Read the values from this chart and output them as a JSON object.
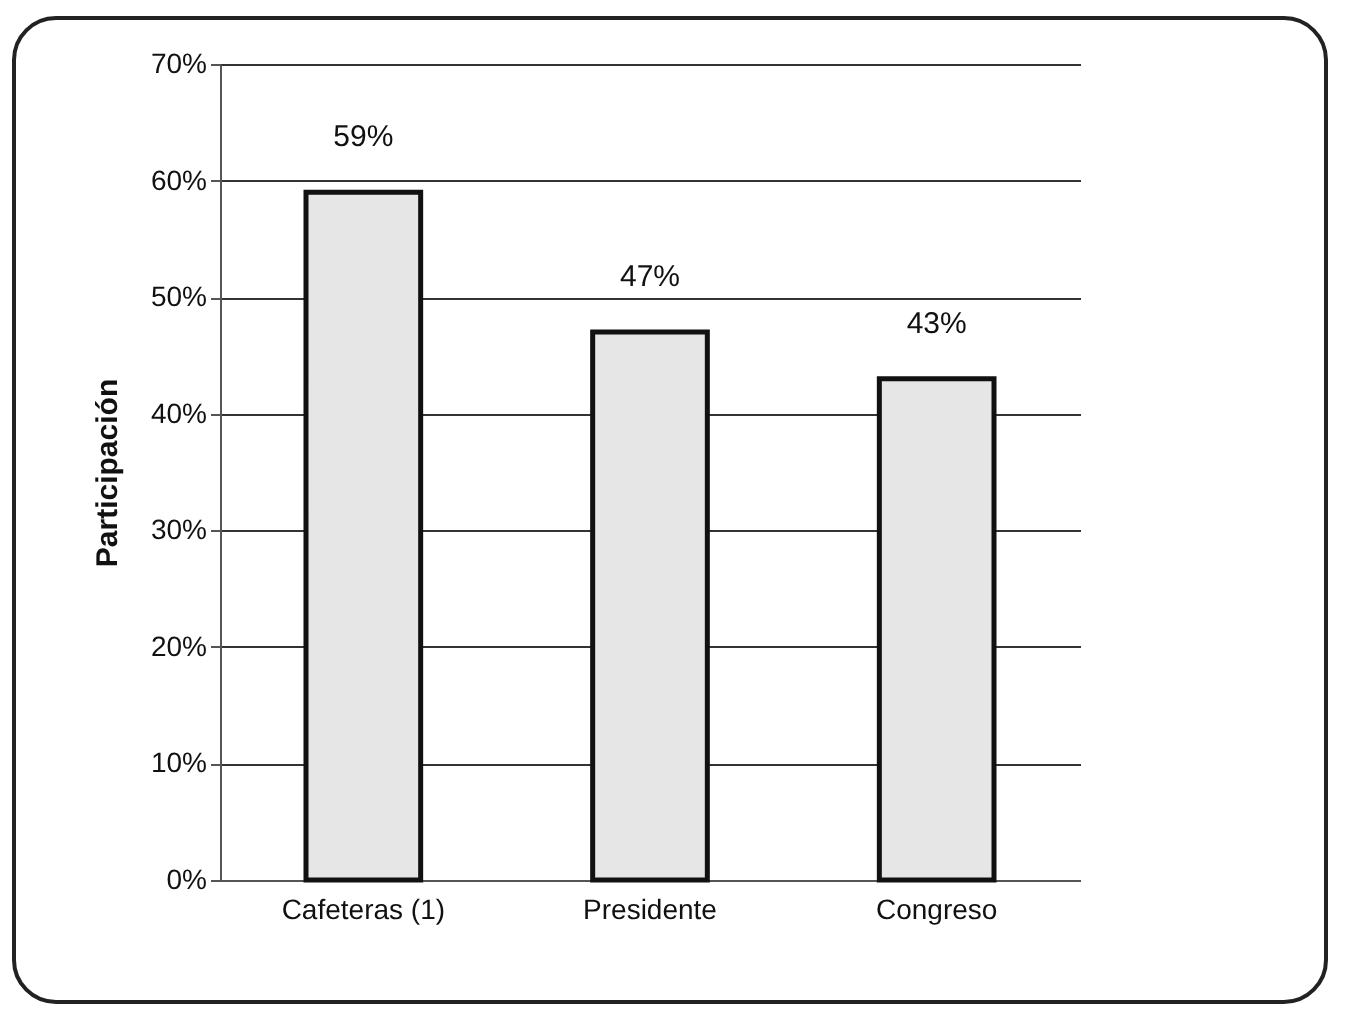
{
  "chart_data": {
    "type": "bar",
    "ylabel": "Participación",
    "categories": [
      "Cafeteras (1)",
      "Presidente",
      "Congreso"
    ],
    "values": [
      59,
      47,
      43
    ],
    "value_labels": [
      "59%",
      "47%",
      "43%"
    ],
    "color": "#e6e6e6",
    "ylim": [
      0,
      70
    ],
    "yticks": [
      {
        "value": 0,
        "label": "0%"
      },
      {
        "value": 10,
        "label": "10%"
      },
      {
        "value": 20,
        "label": "20%"
      },
      {
        "value": 30,
        "label": "30%"
      },
      {
        "value": 40,
        "label": "40%"
      },
      {
        "value": 50,
        "label": "50%"
      },
      {
        "value": 60,
        "label": "60%"
      },
      {
        "value": 70,
        "label": "70%"
      }
    ],
    "grid": "y"
  }
}
